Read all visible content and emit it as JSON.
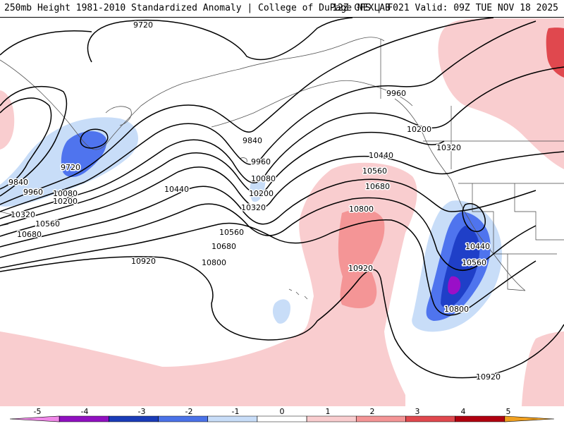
{
  "header": {
    "title": "250mb Height 1981-2010 Standardized Anomaly | College of DuPage NEXLAB",
    "run_info": "12Z GFS | F021 Valid: 09Z TUE NOV 18 2025"
  },
  "map": {
    "contour_labels": [
      "9720",
      "9960",
      "9840",
      "9720",
      "9960",
      "10080",
      "10200",
      "10320",
      "10560",
      "10680",
      "10440",
      "10920",
      "9840",
      "9960",
      "10080",
      "10200",
      "10320",
      "10560",
      "10680",
      "10800",
      "10200",
      "10320",
      "10440",
      "10560",
      "10680",
      "10800",
      "10920",
      "10440",
      "10560",
      "10800",
      "10920"
    ],
    "anomaly_colors": {
      "neg5": "#f0a0f0",
      "neg4": "#9a0fc8",
      "neg3": "#1f3fc8",
      "neg2": "#4f74ee",
      "neg1": "#c8ddf8",
      "pos1": "#f9cdcf",
      "pos2": "#f49596",
      "pos3": "#e0484e",
      "pos4": "#b00010",
      "pos5": "#f0a020"
    }
  },
  "colorbar": {
    "ticks": [
      "-5",
      "-4",
      "-3",
      "-2",
      "-1",
      "0",
      "1",
      "2",
      "3",
      "4",
      "5"
    ],
    "colors": [
      "#f088e8",
      "#9010c0",
      "#1a3cb8",
      "#4a72e8",
      "#c8ddf8",
      "#ffffff",
      "#f9cdcf",
      "#f49596",
      "#e0484e",
      "#b00010",
      "#f0a020"
    ]
  }
}
